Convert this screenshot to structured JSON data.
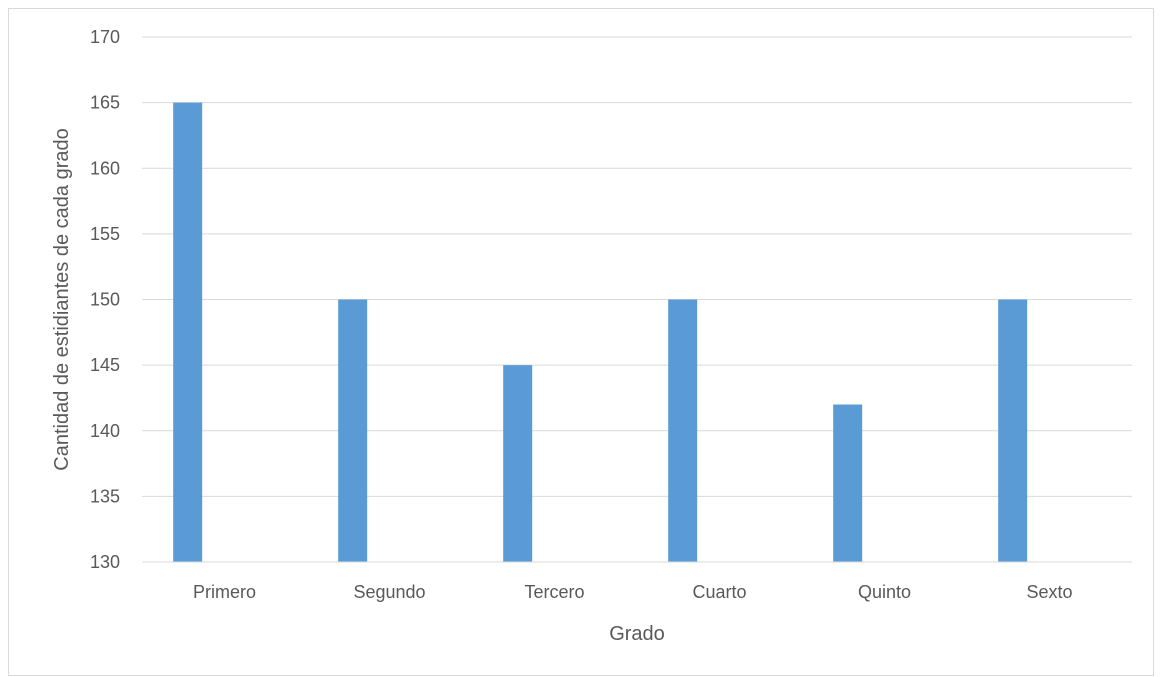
{
  "chart_data": {
    "type": "bar",
    "title": "",
    "xlabel": "Grado",
    "ylabel": "Cantidad de estidiantes de cada grado",
    "categories": [
      "Primero",
      "Segundo",
      "Tercero",
      "Cuarto",
      "Quinto",
      "Sexto"
    ],
    "series": [
      {
        "values": [
          165,
          150,
          145,
          150,
          142,
          150
        ]
      }
    ],
    "ylim": [
      130,
      170
    ],
    "yticks": [
      130,
      135,
      140,
      145,
      150,
      155,
      160,
      165,
      170
    ],
    "grid": true,
    "legend": "none",
    "colors": {
      "bar": "#5b9bd5",
      "grid": "#d9d9d9",
      "text": "#595959",
      "border": "#d9d9d9"
    }
  }
}
